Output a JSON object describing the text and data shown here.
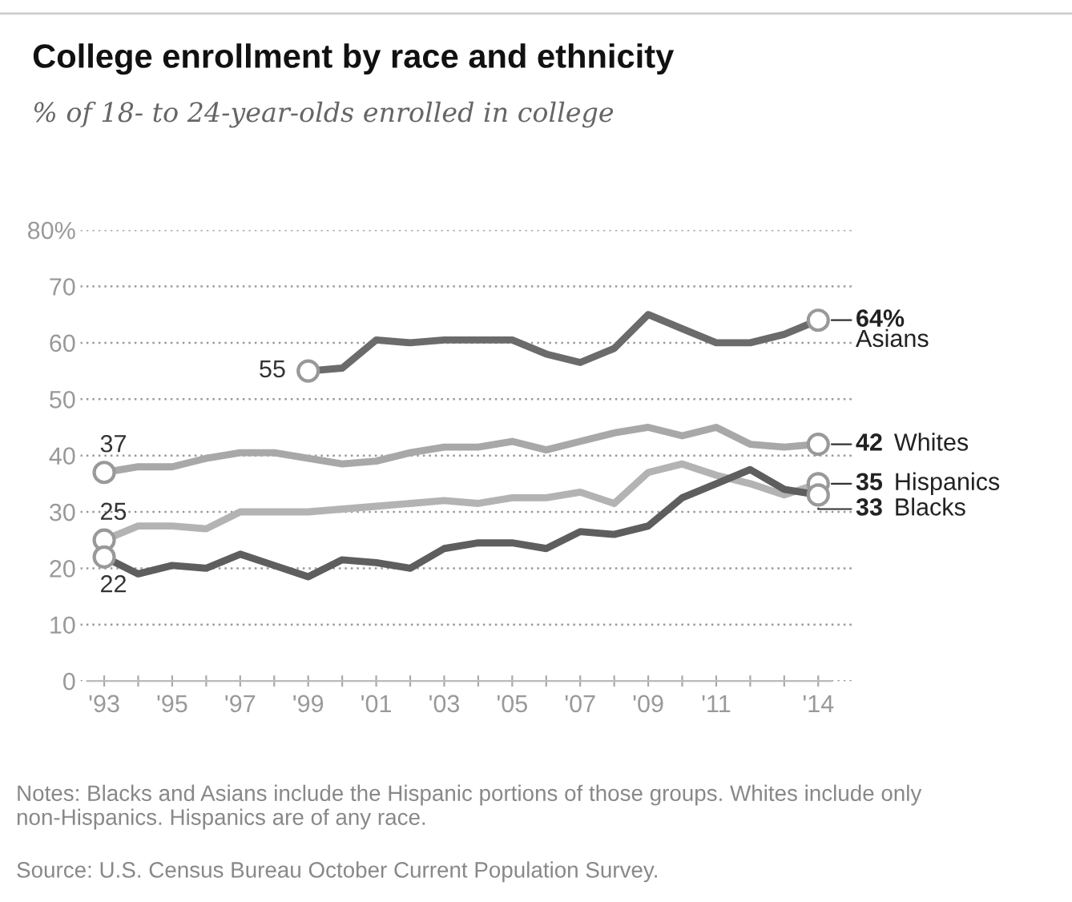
{
  "chart_data": {
    "type": "line",
    "title": "College enrollment by race and ethnicity",
    "subtitle": "% of 18- to 24-year-olds enrolled in college",
    "x": [
      1993,
      1994,
      1995,
      1996,
      1997,
      1998,
      1999,
      2000,
      2001,
      2002,
      2003,
      2004,
      2005,
      2006,
      2007,
      2008,
      2009,
      2010,
      2011,
      2012,
      2013,
      2014
    ],
    "series": [
      {
        "color": "#6b6b6b",
        "values": [
          null,
          null,
          null,
          null,
          null,
          null,
          55,
          55.5,
          60.5,
          60,
          60.5,
          60.5,
          60.5,
          58,
          56.5,
          59,
          65,
          62.5,
          60,
          60,
          61.5,
          64
        ]
      },
      {
        "color": "#a8a8a8",
        "values": [
          37,
          38,
          38,
          39.5,
          40.5,
          40.5,
          39.5,
          38.5,
          39,
          40.5,
          41.5,
          41.5,
          42.5,
          41,
          42.5,
          44,
          45,
          43.5,
          45,
          42,
          41.5,
          42
        ]
      },
      {
        "color": "#b3b3b3",
        "values": [
          25,
          27.5,
          27.5,
          27,
          30,
          30,
          30,
          30.5,
          31,
          31.5,
          32,
          31.5,
          32.5,
          32.5,
          33.5,
          31.5,
          37,
          38.5,
          36.5,
          35,
          33,
          35
        ]
      },
      {
        "color": "#5e5e5e",
        "values": [
          22,
          19,
          20.5,
          20,
          22.5,
          20.5,
          18.5,
          21.5,
          21,
          20,
          23.5,
          24.5,
          24.5,
          23.5,
          26.5,
          26,
          27.5,
          32.5,
          35,
          37.5,
          34,
          33
        ]
      }
    ],
    "xlim": [
      1992.3,
      2015
    ],
    "ylim": [
      0,
      80
    ],
    "xticks": [
      {
        "value": 1993,
        "label": "'93"
      },
      {
        "value": 1994,
        "label": null
      },
      {
        "value": 1995,
        "label": "'95"
      },
      {
        "value": 1996,
        "label": null
      },
      {
        "value": 1997,
        "label": "'97"
      },
      {
        "value": 1998,
        "label": null
      },
      {
        "value": 1999,
        "label": "'99"
      },
      {
        "value": 2000,
        "label": null
      },
      {
        "value": 2001,
        "label": "'01"
      },
      {
        "value": 2002,
        "label": null
      },
      {
        "value": 2003,
        "label": "'03"
      },
      {
        "value": 2004,
        "label": null
      },
      {
        "value": 2005,
        "label": "'05"
      },
      {
        "value": 2006,
        "label": null
      },
      {
        "value": 2007,
        "label": "'07"
      },
      {
        "value": 2008,
        "label": null
      },
      {
        "value": 2009,
        "label": "'09"
      },
      {
        "value": 2010,
        "label": null
      },
      {
        "value": 2011,
        "label": "'11"
      },
      {
        "value": 2012,
        "label": null
      },
      {
        "value": 2013,
        "label": null
      },
      {
        "value": 2014,
        "label": "'14"
      }
    ],
    "yticks": [
      0,
      10,
      20,
      30,
      40,
      50,
      60,
      70,
      {
        "value": 80,
        "label": "80%"
      }
    ],
    "grid": "y",
    "annotations": [
      {
        "text": "55",
        "x": 1999,
        "y": 55
      },
      {
        "text": "37",
        "x": 1993,
        "y": 37
      },
      {
        "text": "25",
        "x": 1993,
        "y": 25
      },
      {
        "text": "22",
        "x": 1993,
        "y": 22
      },
      {
        "text": "64%\nAsians",
        "x": 2014,
        "y": 64
      },
      {
        "text": "42 Whites",
        "x": 2014,
        "y": 42
      },
      {
        "text": "35 Hispanics",
        "x": 2014,
        "y": 35
      },
      {
        "text": "33 Blacks",
        "x": 2014,
        "y": 33
      },
      "Notes: Blacks and Asians include the Hispanic portions of those groups. Whites include only non-Hispanics. Hispanics are of any race.",
      "Source: U.S. Census Bureau October Current Population Survey."
    ]
  }
}
